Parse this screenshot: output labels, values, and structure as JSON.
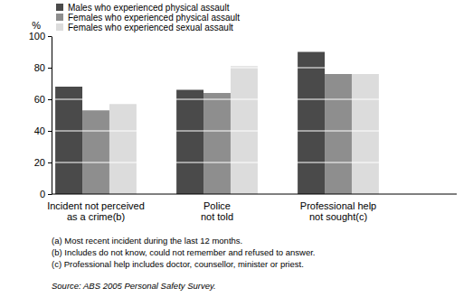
{
  "chart_data": {
    "type": "bar",
    "ylabel": "%",
    "categories": [
      "Incident not perceived as a crime(b)",
      "Police not told",
      "Professional help not sought(c)"
    ],
    "series": [
      {
        "name": "Males who experienced physical assault",
        "color": "#4a4a4a",
        "values": [
          68,
          66,
          90
        ]
      },
      {
        "name": "Females who experienced physical assault",
        "color": "#8e8e8e",
        "values": [
          53,
          64,
          76
        ]
      },
      {
        "name": "Females who experienced sexual assault",
        "color": "#dcdcdc",
        "values": [
          57,
          81,
          76
        ]
      }
    ],
    "ylim": [
      0,
      100
    ],
    "yticks": [
      0,
      20,
      40,
      60,
      80,
      100
    ],
    "grid": true,
    "legend": "upper left",
    "notes": [
      "(a) Most recent incident during the last 12 months.",
      "(b) Includes do not know, could not remember and refused to answer.",
      "(c) Professional help includes doctor, counsellor, minister or priest."
    ],
    "source": "Source: ABS 2005 Personal Safety Survey."
  }
}
